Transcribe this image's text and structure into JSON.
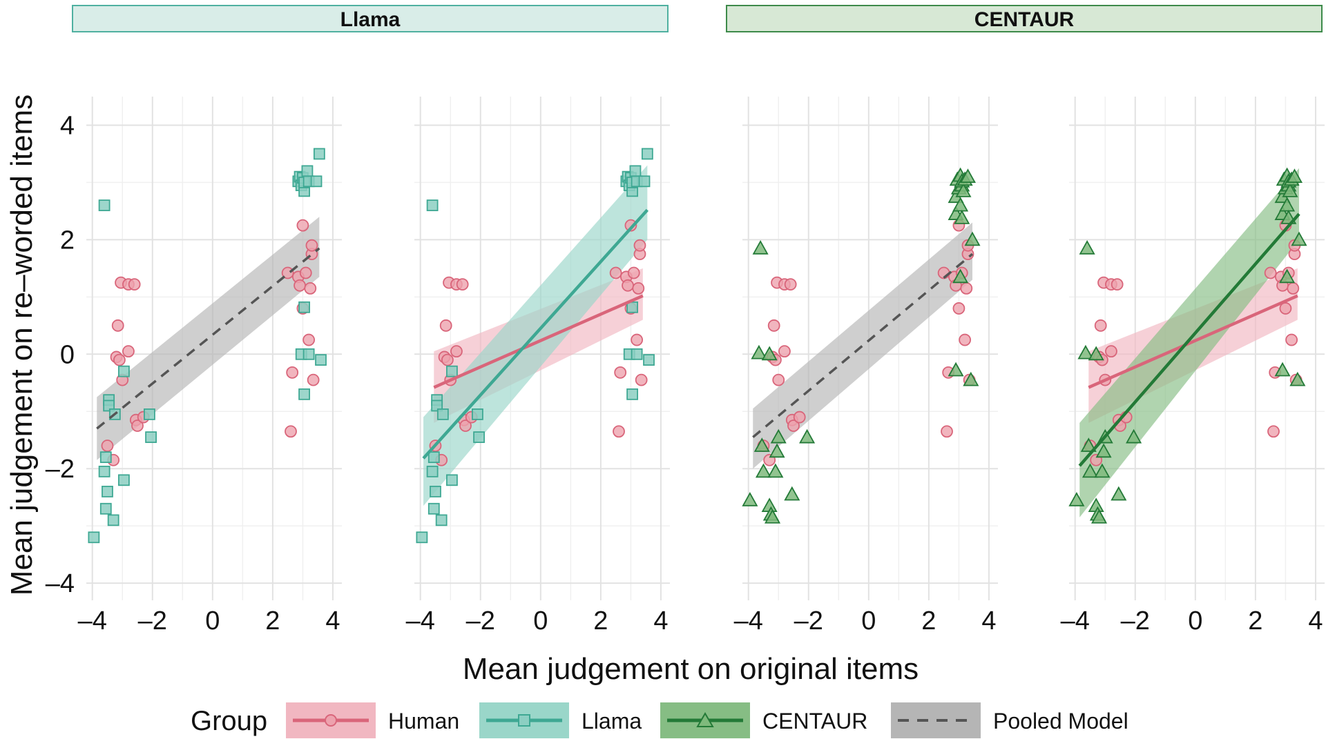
{
  "chart_data": {
    "type": "scatter",
    "xlabel": "Mean judgement on original items",
    "ylabel": "Mean judgement on re–worded items",
    "xlim": [
      -4.2,
      4.3
    ],
    "ylim": [
      -4.3,
      4.5
    ],
    "x_ticks": [
      -4,
      -2,
      0,
      2,
      4
    ],
    "x_tick_labels": [
      "–4",
      "–2",
      "0",
      "2",
      "4"
    ],
    "y_ticks": [
      -4,
      -2,
      0,
      2,
      4
    ],
    "y_tick_labels": [
      "–4",
      "–2",
      "0",
      "2",
      "4"
    ],
    "grid": true,
    "strips": [
      {
        "label": "Llama",
        "fill": "#d9ede8",
        "stroke": "#4fb0a0"
      },
      {
        "label": "CENTAUR",
        "fill": "#d7e8d5",
        "stroke": "#3d8a4a"
      }
    ],
    "legend": {
      "title": "Group",
      "position": "bottom",
      "items": [
        {
          "label": "Human",
          "key": "human"
        },
        {
          "label": "Llama",
          "key": "llama"
        },
        {
          "label": "CENTAUR",
          "key": "centaur"
        },
        {
          "label": "Pooled Model",
          "key": "pooled"
        }
      ]
    },
    "colors": {
      "human": "#d9657a",
      "human_fill": "#eda2ae",
      "human_band": "#f1b7c1",
      "llama": "#3ea893",
      "llama_fill": "#8ccfc2",
      "llama_band": "#9ad6c9",
      "centaur": "#237a37",
      "centaur_fill": "#7fba7c",
      "centaur_band": "#86bd84",
      "pooled": "#555555",
      "pooled_band": "#b5b5b5"
    },
    "series": {
      "human": [
        [
          -3.5,
          -1.6
        ],
        [
          -3.3,
          -1.85
        ],
        [
          -3.15,
          0.5
        ],
        [
          -3.2,
          -0.05
        ],
        [
          -3.1,
          -0.1
        ],
        [
          -3.05,
          1.25
        ],
        [
          -3.0,
          -0.45
        ],
        [
          -2.8,
          0.05
        ],
        [
          -2.8,
          1.22
        ],
        [
          -2.6,
          1.22
        ],
        [
          -2.55,
          -1.15
        ],
        [
          -2.5,
          -1.25
        ],
        [
          -2.3,
          -1.1
        ],
        [
          2.5,
          1.42
        ],
        [
          2.65,
          -0.32
        ],
        [
          2.6,
          -1.35
        ],
        [
          2.85,
          1.35
        ],
        [
          2.9,
          1.2
        ],
        [
          3.0,
          2.25
        ],
        [
          3.0,
          0.8
        ],
        [
          3.1,
          1.42
        ],
        [
          3.2,
          0.25
        ],
        [
          3.25,
          1.15
        ],
        [
          3.3,
          1.75
        ],
        [
          3.3,
          1.9
        ],
        [
          3.35,
          -0.45
        ]
      ],
      "llama": [
        [
          -3.95,
          -3.2
        ],
        [
          -3.6,
          2.6
        ],
        [
          -3.6,
          -2.05
        ],
        [
          -3.55,
          -1.8
        ],
        [
          -3.5,
          -2.4
        ],
        [
          -3.55,
          -2.7
        ],
        [
          -3.45,
          -0.8
        ],
        [
          -3.45,
          -0.9
        ],
        [
          -3.3,
          -2.9
        ],
        [
          -3.25,
          -1.05
        ],
        [
          -2.95,
          -0.3
        ],
        [
          -2.95,
          -2.2
        ],
        [
          -2.1,
          -1.05
        ],
        [
          -2.05,
          -1.45
        ],
        [
          2.85,
          3.02
        ],
        [
          2.9,
          3.1
        ],
        [
          2.95,
          2.95
        ],
        [
          3.0,
          3.08
        ],
        [
          3.05,
          2.85
        ],
        [
          3.05,
          3.0
        ],
        [
          3.05,
          0.82
        ],
        [
          2.95,
          0.0
        ],
        [
          3.05,
          -0.7
        ],
        [
          3.15,
          3.2
        ],
        [
          3.2,
          3.02
        ],
        [
          3.2,
          0.0
        ],
        [
          3.45,
          3.02
        ],
        [
          3.55,
          3.5
        ],
        [
          3.6,
          -0.1
        ]
      ],
      "centaur": [
        [
          -3.95,
          -2.55
        ],
        [
          -3.6,
          1.85
        ],
        [
          -3.65,
          0.02
        ],
        [
          -3.55,
          -1.6
        ],
        [
          -3.5,
          -2.05
        ],
        [
          -3.3,
          0.0
        ],
        [
          -3.3,
          -2.65
        ],
        [
          -3.25,
          -2.8
        ],
        [
          -3.2,
          -2.85
        ],
        [
          -3.1,
          -2.05
        ],
        [
          -3.05,
          -1.7
        ],
        [
          -3.0,
          -1.45
        ],
        [
          -2.55,
          -2.45
        ],
        [
          -2.05,
          -1.45
        ],
        [
          2.9,
          2.45
        ],
        [
          2.9,
          2.75
        ],
        [
          2.95,
          3.05
        ],
        [
          3.0,
          2.9
        ],
        [
          3.05,
          3.12
        ],
        [
          3.05,
          1.35
        ],
        [
          3.05,
          2.6
        ],
        [
          3.1,
          2.38
        ],
        [
          3.1,
          2.95
        ],
        [
          3.1,
          3.02
        ],
        [
          3.15,
          2.85
        ],
        [
          3.2,
          3.05
        ],
        [
          3.3,
          3.1
        ],
        [
          3.45,
          2.0
        ],
        [
          3.4,
          -0.45
        ],
        [
          2.9,
          -0.28
        ]
      ]
    },
    "fits": {
      "pooled_llama": {
        "x": [
          -3.85,
          3.55
        ],
        "y": [
          -1.3,
          1.85
        ],
        "band_lo": [
          -1.85,
          1.35
        ],
        "band_hi": [
          -0.75,
          2.4
        ]
      },
      "human": {
        "x": [
          -3.55,
          3.4
        ],
        "y": [
          -0.58,
          1.02
        ],
        "band_lo": [
          -1.2,
          0.6
        ],
        "band_hi": [
          0.05,
          1.5
        ]
      },
      "llama": {
        "x": [
          -3.9,
          3.55
        ],
        "y": [
          -1.82,
          2.52
        ],
        "band_lo": [
          -2.65,
          2.0
        ],
        "band_hi": [
          -1.1,
          3.3
        ]
      },
      "pooled_centaur": {
        "x": [
          -3.85,
          3.45
        ],
        "y": [
          -1.45,
          1.75
        ],
        "band_lo": [
          -2.0,
          1.3
        ],
        "band_hi": [
          -0.95,
          2.3
        ]
      },
      "centaur": {
        "x": [
          -3.85,
          3.45
        ],
        "y": [
          -1.95,
          2.45
        ],
        "band_lo": [
          -2.85,
          2.0
        ],
        "band_hi": [
          -1.2,
          3.25
        ]
      }
    },
    "panels": [
      {
        "strip": 0,
        "points": [
          "human",
          "llama"
        ],
        "fits": [
          "pooled_llama"
        ]
      },
      {
        "strip": 0,
        "points": [
          "human",
          "llama"
        ],
        "fits": [
          "human",
          "llama"
        ]
      },
      {
        "strip": 1,
        "points": [
          "human",
          "centaur"
        ],
        "fits": [
          "pooled_centaur"
        ]
      },
      {
        "strip": 1,
        "points": [
          "human",
          "centaur"
        ],
        "fits": [
          "human",
          "centaur"
        ]
      }
    ]
  }
}
